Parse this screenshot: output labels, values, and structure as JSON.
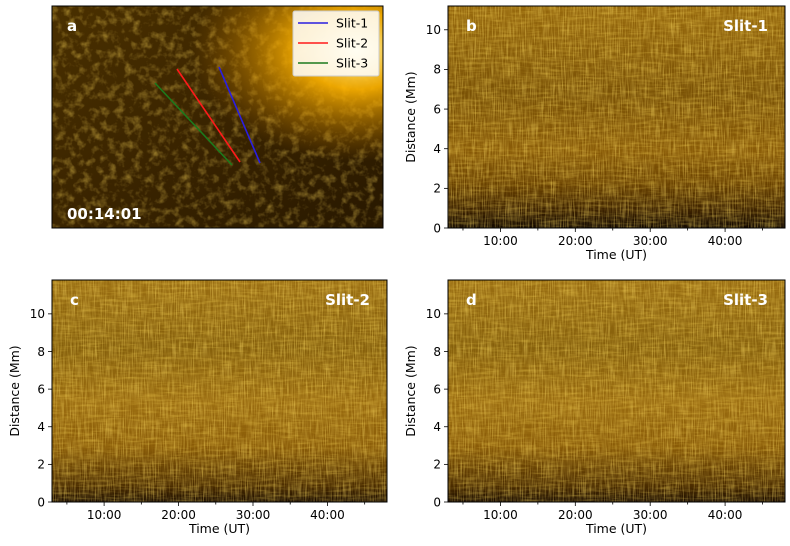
{
  "figure": {
    "panels": [
      {
        "id": "a",
        "label": "a",
        "timestamp": "00:14:01",
        "legend": [
          {
            "name": "Slit-1",
            "color": "#2a1ee0"
          },
          {
            "name": "Slit-2",
            "color": "#ff1a1a"
          },
          {
            "name": "Slit-3",
            "color": "#1c7a1c"
          }
        ]
      },
      {
        "id": "b",
        "label": "b",
        "title": "Slit-1"
      },
      {
        "id": "c",
        "label": "c",
        "title": "Slit-2"
      },
      {
        "id": "d",
        "label": "d",
        "title": "Slit-3"
      }
    ]
  },
  "chart_data": [
    {
      "type": "heatmap",
      "panel": "b",
      "series_name": "Slit-1",
      "xlabel": "Time (UT)",
      "ylabel": "Distance (Mm)",
      "x_tick_labels": [
        "10:00",
        "20:00",
        "30:00",
        "40:00"
      ],
      "x_tick_values_min": [
        10,
        20,
        30,
        40
      ],
      "xlim_min": [
        3,
        48
      ],
      "y_ticks": [
        0,
        2,
        4,
        6,
        8,
        10
      ],
      "ylim": [
        0,
        11.2
      ],
      "colormap": "sdoaia171"
    },
    {
      "type": "heatmap",
      "panel": "c",
      "series_name": "Slit-2",
      "xlabel": "Time (UT)",
      "ylabel": "Distance (Mm)",
      "x_tick_labels": [
        "10:00",
        "20:00",
        "30:00",
        "40:00"
      ],
      "x_tick_values_min": [
        10,
        20,
        30,
        40
      ],
      "xlim_min": [
        3,
        48
      ],
      "y_ticks": [
        0,
        2,
        4,
        6,
        8,
        10
      ],
      "ylim": [
        0,
        11.8
      ],
      "colormap": "sdoaia171"
    },
    {
      "type": "heatmap",
      "panel": "d",
      "series_name": "Slit-3",
      "xlabel": "Time (UT)",
      "ylabel": "Distance (Mm)",
      "x_tick_labels": [
        "10:00",
        "20:00",
        "30:00",
        "40:00"
      ],
      "x_tick_values_min": [
        10,
        20,
        30,
        40
      ],
      "xlim_min": [
        3,
        48
      ],
      "y_ticks": [
        0,
        2,
        4,
        6,
        8,
        10
      ],
      "ylim": [
        0,
        11.8
      ],
      "colormap": "sdoaia171"
    }
  ]
}
